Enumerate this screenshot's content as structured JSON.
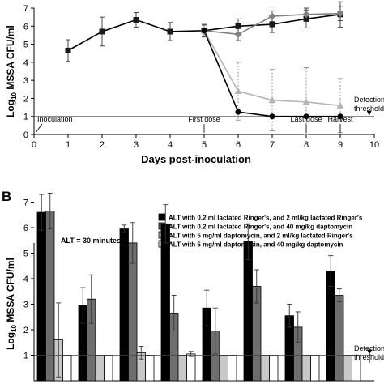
{
  "chart_data": [
    {
      "type": "line",
      "xlabel": "Days post-inoculation",
      "ylabel_prefix": "Log",
      "ylabel_sub": "10",
      "ylabel_suffix": " MSSA CFU/ml",
      "xlim": [
        0,
        10
      ],
      "ylim": [
        0,
        7
      ],
      "xticks": [
        0,
        1,
        2,
        3,
        4,
        5,
        6,
        7,
        8,
        9,
        10
      ],
      "yticks": [
        0,
        1,
        2,
        3,
        4,
        5,
        6,
        7
      ],
      "grid": false,
      "detection_threshold": 1.0,
      "series": [
        {
          "color": "#1a1a1a",
          "marker": "square",
          "line_color": "#000000",
          "x": [
            1,
            2,
            3,
            4,
            5,
            6,
            7,
            8,
            9
          ],
          "y": [
            4.65,
            5.7,
            6.35,
            5.7,
            5.75,
            6.0,
            6.1,
            6.4,
            6.65
          ],
          "err": [
            0.6,
            0.8,
            0.4,
            0.5,
            0.35,
            0.4,
            0.45,
            0.5,
            0.7
          ]
        },
        {
          "color": "#808080",
          "marker": "diamond",
          "line_color": "#808080",
          "x": [
            5,
            6,
            7,
            8,
            9
          ],
          "y": [
            5.75,
            5.55,
            6.55,
            6.65,
            6.7
          ],
          "err": [
            0.3,
            0.35,
            0.3,
            0.35,
            0.4
          ]
        },
        {
          "color": "#b4b4b4",
          "marker": "triangle",
          "line_color": "#b4b4b4",
          "x": [
            5,
            6,
            7,
            8,
            9
          ],
          "y": [
            5.75,
            2.4,
            1.9,
            1.8,
            1.6
          ],
          "err": [
            0.3,
            1.6,
            1.7,
            1.9,
            1.5
          ]
        },
        {
          "color": "#000000",
          "marker": "circle",
          "line_color": "#000000",
          "x": [
            5,
            6,
            7,
            8,
            9
          ],
          "y": [
            5.75,
            1.25,
            1.0,
            1.0,
            1.0
          ],
          "err": [
            0,
            0,
            0,
            0,
            0
          ]
        }
      ],
      "annotations": [
        {
          "text": "Inoculation",
          "x": 0
        },
        {
          "text": "First dose",
          "x": 5
        },
        {
          "text": "Last dose",
          "x": 8
        },
        {
          "text": "Harvest",
          "x": 9
        },
        {
          "text": "Detection",
          "x": 9.85
        },
        {
          "text": "threshold",
          "x": 9.85
        }
      ]
    },
    {
      "type": "bar",
      "panel_label": "B",
      "ylabel_prefix": "Log",
      "ylabel_sub": "10",
      "ylabel_suffix": " MSSA CFU/ml",
      "ylim": [
        0,
        8
      ],
      "yticks": [
        1,
        2,
        3,
        4,
        5,
        6,
        7
      ],
      "note": "ALT = 30 minutes",
      "legend_position": "top-right",
      "series": [
        {
          "name": "ALT with 0.2 ml lactated Ringer's, and 2 ml/kg lactated Ringer's",
          "color": "#000000",
          "values": [
            6.6,
            2.95,
            5.95,
            6.15,
            2.85,
            5.45,
            2.55,
            4.3
          ],
          "err": [
            0.7,
            0.7,
            0.15,
            0.75,
            0.7,
            0.7,
            0.45,
            0.6
          ]
        },
        {
          "name": "ALT with 0.2 ml lactated Ringer's, and 40 mg/kg daptomycin",
          "color": "#6e6e6e",
          "values": [
            6.65,
            3.2,
            5.4,
            2.65,
            1.95,
            3.7,
            2.1,
            3.35
          ],
          "err": [
            0.7,
            0.95,
            0.8,
            0.7,
            0.9,
            0.65,
            0.6,
            0.25
          ]
        },
        {
          "name": "ALT with 5 mg/ml daptomycin, and 2 ml/kg lactated Ringer's",
          "color": "#c8c8c8",
          "values": [
            1.6,
            1.0,
            1.1,
            1.0,
            1.0,
            1.0,
            1.0,
            1.0
          ],
          "err": [
            1.45,
            0,
            0.25,
            0,
            0,
            0,
            0,
            0
          ]
        },
        {
          "name": "ALT with 5 mg/ml daptomycin, and 40 mg/kg daptomycin",
          "color": "#ffffff",
          "values": [
            1.0,
            1.0,
            1.0,
            1.05,
            1.0,
            1.0,
            1.0,
            1.0
          ],
          "err": [
            0,
            0,
            0,
            0.1,
            0,
            0,
            0,
            0
          ]
        }
      ],
      "annotations": [
        {
          "text": "Detection"
        },
        {
          "text": "threshold"
        }
      ]
    }
  ]
}
